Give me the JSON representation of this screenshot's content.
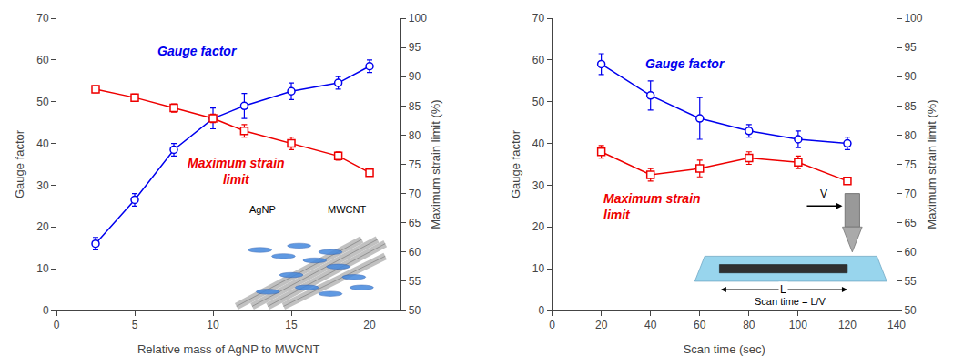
{
  "chart_data": [
    {
      "type": "line",
      "xlabel": "Relative mass of AgNP to MWCNT",
      "ylabel": "Gauge factor",
      "y2label": "Maximum strain limit (%)",
      "xlim": [
        0,
        22
      ],
      "xticks": [
        0,
        5,
        10,
        15,
        20
      ],
      "ylim": [
        0,
        70
      ],
      "yticks": [
        0,
        10,
        20,
        30,
        40,
        50,
        60,
        70
      ],
      "y2lim": [
        50,
        100
      ],
      "y2ticks": [
        50,
        55,
        60,
        65,
        70,
        75,
        80,
        85,
        90,
        95,
        100
      ],
      "grid": false,
      "x": [
        2.5,
        5,
        7.5,
        10,
        12,
        15,
        18,
        20
      ],
      "series": [
        {
          "name": "Gauge factor",
          "color": "#0000EE",
          "marker": "circle",
          "line_style": "solid",
          "values": [
            16,
            26.5,
            38.5,
            46,
            49,
            52.5,
            54.5,
            58.5
          ],
          "yerr": [
            1.5,
            1.5,
            1.5,
            2.5,
            3.0,
            2.0,
            1.5,
            1.5
          ]
        },
        {
          "name": "Maximum strain\nlimit",
          "color": "#EE0000",
          "marker": "square",
          "line_style": "solid",
          "values": [
            53,
            51,
            48.5,
            46,
            43,
            40,
            37,
            33
          ],
          "yerr": [
            0.8,
            0.8,
            1.0,
            1.0,
            1.5,
            1.5,
            1.0,
            0.8
          ]
        }
      ],
      "annotations": [
        "AgNP",
        "MWCNT"
      ]
    },
    {
      "type": "line",
      "xlabel": "Scan time (sec)",
      "ylabel": "Gauge factor",
      "y2label": "Maximum strain limit (%)",
      "xlim": [
        0,
        140
      ],
      "xticks": [
        0,
        20,
        40,
        60,
        80,
        100,
        120,
        140
      ],
      "ylim": [
        0,
        70
      ],
      "yticks": [
        0,
        10,
        20,
        30,
        40,
        50,
        60,
        70
      ],
      "y2lim": [
        50,
        100
      ],
      "y2ticks": [
        50,
        55,
        60,
        65,
        70,
        75,
        80,
        85,
        90,
        95,
        100
      ],
      "grid": false,
      "x": [
        20,
        40,
        60,
        80,
        100,
        120
      ],
      "series": [
        {
          "name": "Gauge factor",
          "color": "#0000EE",
          "marker": "circle",
          "line_style": "solid",
          "values": [
            59,
            51.5,
            46,
            43,
            41,
            40
          ],
          "yerr": [
            2.5,
            3.5,
            5.0,
            1.5,
            2.0,
            1.5
          ]
        },
        {
          "name": "Maximum strain\nlimit",
          "color": "#EE0000",
          "marker": "square",
          "line_style": "solid",
          "values": [
            38,
            32.5,
            34,
            36.5,
            35.5,
            31
          ],
          "yerr": [
            1.5,
            1.5,
            2.0,
            1.5,
            1.5,
            0.8
          ]
        }
      ],
      "annotations": [
        "V",
        "L",
        "Scan time = L/V"
      ]
    }
  ]
}
